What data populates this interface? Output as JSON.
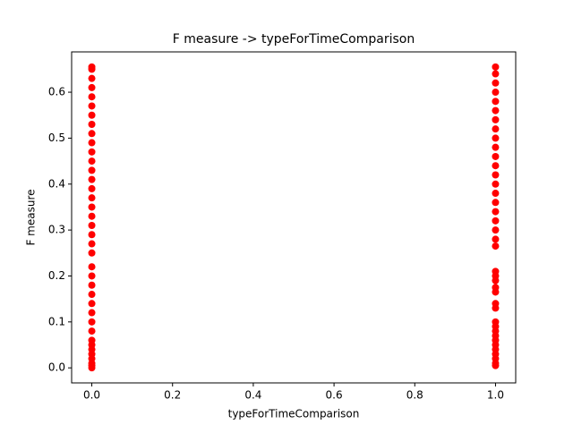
{
  "chart_data": {
    "type": "scatter",
    "title": "F measure -> typeForTimeComparison",
    "xlabel": "typeForTimeComparison",
    "ylabel": "F measure",
    "xlim": [
      -0.05,
      1.05
    ],
    "ylim": [
      -0.03275,
      0.68775
    ],
    "xticks": [
      {
        "value": 0,
        "label": "0.0"
      },
      0.2,
      0.4,
      0.6,
      0.8,
      {
        "value": 1,
        "label": "1.0"
      }
    ],
    "yticks": [
      {
        "value": 0,
        "label": "0.0"
      },
      0.1,
      0.2,
      0.3,
      0.4,
      0.5,
      0.6
    ],
    "grid": false,
    "series": [
      {
        "color": "#ff0000",
        "x": [
          0,
          0,
          0,
          0,
          0,
          0,
          0,
          0,
          0,
          0,
          0,
          0,
          0,
          0,
          0,
          0,
          0,
          0,
          0,
          0,
          0,
          0,
          0,
          0,
          0,
          0,
          0,
          0,
          0,
          0,
          0,
          0,
          0,
          0,
          0,
          0,
          0,
          0,
          1,
          1,
          1,
          1,
          1,
          1,
          1,
          1,
          1,
          1,
          1,
          1,
          1,
          1,
          1,
          1,
          1,
          1,
          1,
          1,
          1,
          1,
          1,
          1,
          1,
          1,
          1,
          1,
          1,
          1,
          1,
          1,
          1,
          1,
          1,
          1,
          1,
          1,
          1
        ],
        "values": [
          0,
          0.005,
          0.01,
          0.02,
          0.03,
          0.04,
          0.05,
          0.06,
          0.08,
          0.1,
          0.12,
          0.14,
          0.16,
          0.18,
          0.2,
          0.22,
          0.25,
          0.27,
          0.29,
          0.31,
          0.33,
          0.35,
          0.37,
          0.39,
          0.41,
          0.43,
          0.45,
          0.47,
          0.49,
          0.51,
          0.53,
          0.55,
          0.57,
          0.59,
          0.61,
          0.63,
          0.65,
          0.655,
          0.005,
          0.01,
          0.02,
          0.03,
          0.04,
          0.05,
          0.06,
          0.07,
          0.08,
          0.09,
          0.1,
          0.13,
          0.14,
          0.165,
          0.175,
          0.19,
          0.2,
          0.21,
          0.265,
          0.28,
          0.3,
          0.32,
          0.34,
          0.36,
          0.38,
          0.4,
          0.42,
          0.44,
          0.46,
          0.48,
          0.5,
          0.52,
          0.54,
          0.56,
          0.58,
          0.6,
          0.62,
          0.64,
          0.655
        ]
      }
    ]
  }
}
